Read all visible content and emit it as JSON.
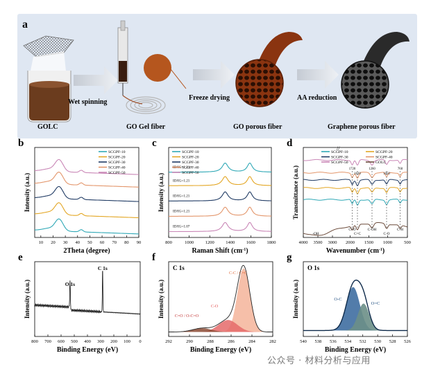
{
  "panel_a": {
    "label": "a",
    "steps": [
      "Wet spinning",
      "Freeze drying",
      "AA reduction"
    ],
    "items": [
      "GOLC",
      "GO Gel fiber",
      "GO porous fiber",
      "Graphene porous fiber"
    ]
  },
  "watermark": "公众号 · 材料分析与应用",
  "colors": {
    "s10": "#2fa8b6",
    "s20": "#e3a623",
    "s30": "#1f3a63",
    "s40": "#e3956a",
    "s50": "#c986b6",
    "golc": "#6b4a3a",
    "bg_a": "#dde6f2"
  },
  "chart_data": [
    {
      "panel": "b",
      "type": "line",
      "xlabel": "2Theta (degree)",
      "ylabel": "Intensity (a.u.)",
      "xlim": [
        5,
        90
      ],
      "xticks": [
        "10",
        "20",
        "30",
        "40",
        "50",
        "60",
        "70",
        "80",
        "90"
      ],
      "legend": [
        "SCGPF-10",
        "SCGPF-20",
        "SCGPF-30",
        "SCGPF-40",
        "SCGPF-50"
      ],
      "legend_position": "top-right",
      "peaks": [
        25,
        43
      ]
    },
    {
      "panel": "c",
      "type": "line",
      "xlabel": "Raman Shift (cm-1)",
      "ylabel": "Intensity (a.u.)",
      "xlim": [
        800,
        1800
      ],
      "xticks": [
        "800",
        "1000",
        "1200",
        "1400",
        "1600",
        "1800"
      ],
      "legend": [
        "SCGPF-10",
        "SCGPF-20",
        "SCGPF-30",
        "SCGPF-40",
        "SCGPF-50"
      ],
      "legend_position": "top-left",
      "peaks": [
        1350,
        1590
      ],
      "ratios": [
        "ID/IG=1.21",
        "ID/IG=1.21",
        "ID/IG=1.21",
        "ID/IG=1.21",
        "ID/IG=1.07"
      ]
    },
    {
      "panel": "d",
      "type": "line",
      "xlabel": "Wavenumber (cm-1)",
      "ylabel": "Transmittance (a.u.)",
      "xlim": [
        4000,
        500
      ],
      "xticks": [
        "4000",
        "3500",
        "3000",
        "2000",
        "1500",
        "1000",
        "500"
      ],
      "legend": [
        "SCGPF-10",
        "SCGPF-20",
        "SCGPF-30",
        "SCGPF-40",
        "SCGPF-50",
        "GOLC"
      ],
      "legend_position": "top",
      "markers": [
        "1720",
        "1620",
        "1260",
        "1050",
        "760"
      ],
      "bands": [
        "-OH",
        "C=O",
        "C=C",
        "C-OH",
        "C-O",
        "C-H"
      ]
    },
    {
      "panel": "e",
      "type": "line",
      "title": "",
      "xlabel": "Binding Energy (eV)",
      "ylabel": "Intensity (a.u.)",
      "xlim": [
        800,
        0
      ],
      "xticks": [
        "800",
        "700",
        "600",
        "500",
        "400",
        "300",
        "200",
        "100",
        "0"
      ],
      "peak_labels": [
        "C 1s",
        "O 1s"
      ],
      "peaks": [
        285,
        532
      ]
    },
    {
      "panel": "f",
      "type": "area",
      "title": "C 1s",
      "xlabel": "Binding Energy (eV)",
      "ylabel": "Intensity (a.u.)",
      "xlim": [
        292,
        282
      ],
      "xticks": [
        "292",
        "290",
        "288",
        "286",
        "284",
        "282"
      ],
      "components": [
        "C-C / C=C",
        "C-O",
        "C=O / O-C=O"
      ],
      "peaks": [
        284.8,
        286.3,
        288.8
      ]
    },
    {
      "panel": "g",
      "type": "area",
      "title": "O 1s",
      "xlabel": "Binding Energy (eV)",
      "ylabel": "Intensity (a.u.)",
      "xlim": [
        540,
        526
      ],
      "xticks": [
        "540",
        "538",
        "536",
        "534",
        "532",
        "530",
        "528",
        "526"
      ],
      "components": [
        "O-C",
        "O=C"
      ],
      "peaks": [
        533.2,
        531.8
      ]
    }
  ]
}
